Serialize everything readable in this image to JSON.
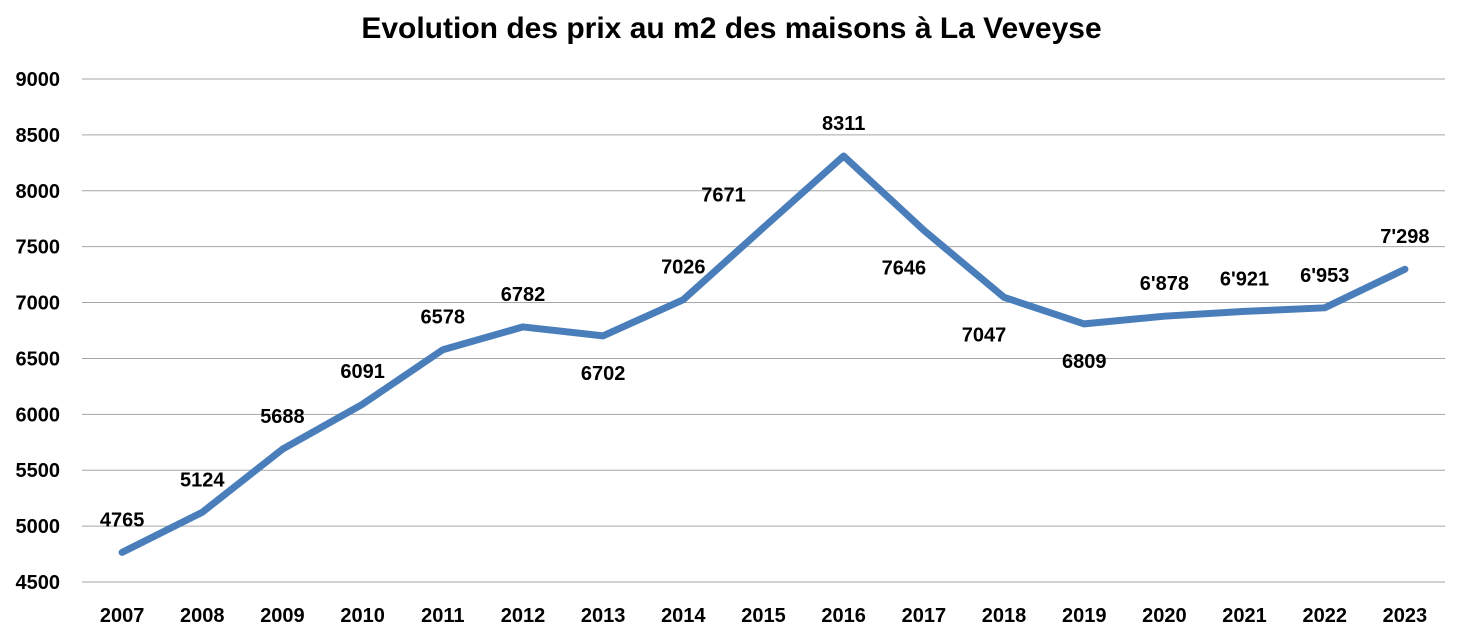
{
  "chart_data": {
    "type": "line",
    "title": "Evolution des prix au m2 des maisons à La Veveyse",
    "xlabel": "",
    "ylabel": "",
    "categories": [
      "2007",
      "2008",
      "2009",
      "2010",
      "2011",
      "2012",
      "2013",
      "2014",
      "2015",
      "2016",
      "2017",
      "2018",
      "2019",
      "2020",
      "2021",
      "2022",
      "2023"
    ],
    "values": [
      4765,
      5124,
      5688,
      6091,
      6578,
      6782,
      6702,
      7026,
      7671,
      8311,
      7646,
      7047,
      6809,
      6878,
      6921,
      6953,
      7298
    ],
    "data_labels": [
      "4765",
      "5124",
      "5688",
      "6091",
      "6578",
      "6782",
      "6702",
      "7026",
      "7671",
      "8311",
      "7646",
      "7047",
      "6809",
      "6'878",
      "6'921",
      "6'953",
      "7'298"
    ],
    "y_ticks": [
      "4500",
      "5000",
      "5500",
      "6000",
      "6500",
      "7000",
      "7500",
      "8000",
      "8500",
      "9000"
    ],
    "ylim": [
      4500,
      9000
    ],
    "grid": true,
    "legend": "none",
    "line_color": "#4a7ebb",
    "gridline_color": "#a6a6a6"
  }
}
